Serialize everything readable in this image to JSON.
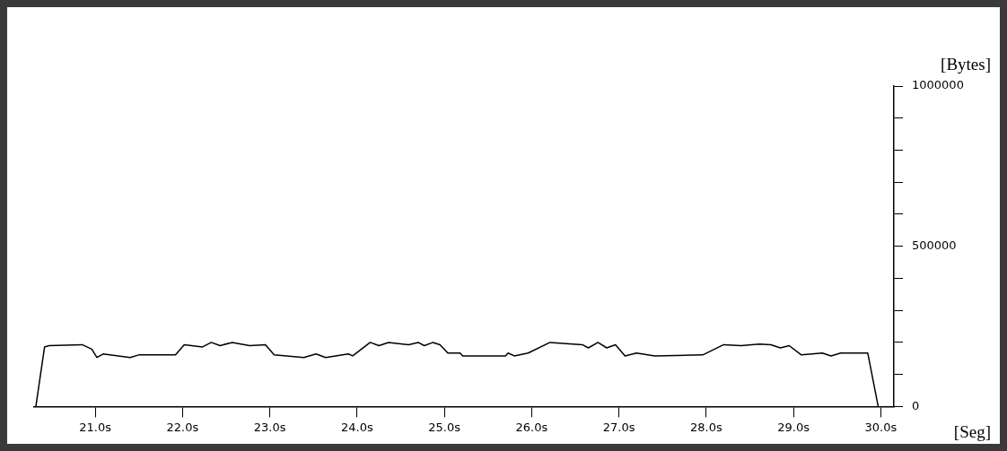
{
  "chart_data": {
    "type": "line",
    "xlabel": "[Seg]",
    "ylabel": "[Bytes]",
    "xlim": [
      20.3,
      30.15
    ],
    "ylim": [
      0,
      1000000
    ],
    "xticks": [
      {
        "value": 21,
        "label": "21.0s"
      },
      {
        "value": 22,
        "label": "22.0s"
      },
      {
        "value": 23,
        "label": "23.0s"
      },
      {
        "value": 24,
        "label": "24.0s"
      },
      {
        "value": 25,
        "label": "25.0s"
      },
      {
        "value": 26,
        "label": "26.0s"
      },
      {
        "value": 27,
        "label": "27.0s"
      },
      {
        "value": 28,
        "label": "28.0s"
      },
      {
        "value": 29,
        "label": "29.0s"
      },
      {
        "value": 30,
        "label": "30.0s"
      }
    ],
    "yticks": [
      0,
      {
        "value": 100000,
        "label": null
      },
      {
        "value": 200000,
        "label": null
      },
      {
        "value": 300000,
        "label": null
      },
      {
        "value": 400000,
        "label": null
      },
      500000,
      {
        "value": 600000,
        "label": null
      },
      {
        "value": 700000,
        "label": null
      },
      {
        "value": 800000,
        "label": null
      },
      {
        "value": 900000,
        "label": null
      },
      1000000
    ],
    "grid": false,
    "legend": false,
    "marker": "none",
    "line_style": "solid",
    "series": [
      {
        "color": "#000000",
        "x": [
          20.32,
          20.42,
          20.47,
          20.85,
          20.96,
          21.02,
          21.09,
          21.4,
          21.5,
          21.92,
          22.02,
          22.23,
          22.33,
          22.43,
          22.57,
          22.77,
          22.95,
          23.05,
          23.39,
          23.53,
          23.64,
          23.9,
          23.95,
          24.15,
          24.25,
          24.36,
          24.59,
          24.7,
          24.77,
          24.87,
          24.95,
          25.04,
          25.18,
          25.21,
          25.7,
          25.73,
          25.8,
          25.96,
          26.21,
          26.58,
          26.65,
          26.76,
          26.86,
          26.96,
          27.07,
          27.2,
          27.41,
          27.96,
          28.2,
          28.4,
          28.61,
          28.74,
          28.85,
          28.95,
          29.09,
          29.33,
          29.43,
          29.54,
          29.85,
          29.97
        ],
        "values": [
          0,
          186000,
          190000,
          193000,
          179000,
          153000,
          164000,
          153000,
          161000,
          161000,
          193000,
          186000,
          200000,
          190000,
          200000,
          190000,
          193000,
          161000,
          153000,
          164000,
          153000,
          164000,
          158000,
          200000,
          190000,
          200000,
          193000,
          200000,
          190000,
          200000,
          193000,
          167000,
          167000,
          158000,
          158000,
          167000,
          158000,
          167000,
          200000,
          193000,
          183000,
          200000,
          183000,
          193000,
          158000,
          167000,
          158000,
          161000,
          193000,
          190000,
          195000,
          193000,
          183000,
          190000,
          161000,
          167000,
          158000,
          167000,
          167000,
          0
        ]
      }
    ]
  }
}
